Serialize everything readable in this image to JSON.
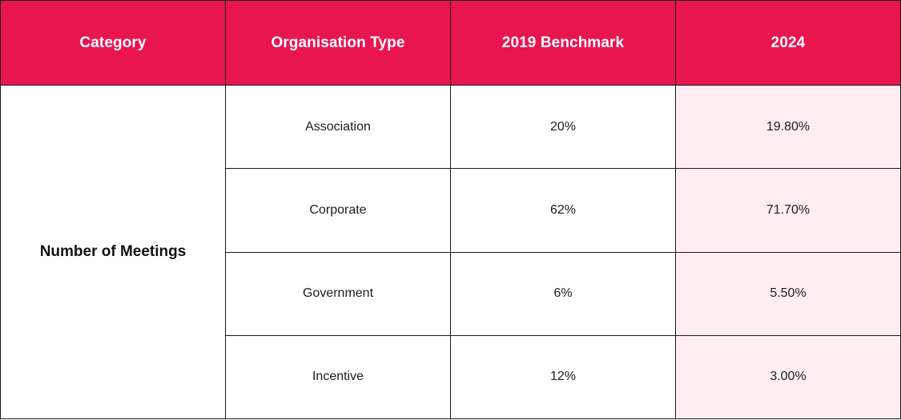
{
  "colors": {
    "header_bg": "#e8154f",
    "header_text": "#ffffff",
    "highlight_col_bg": "#ffedf2",
    "border": "#1a1a1a"
  },
  "table": {
    "headers": [
      "Category",
      "Organisation Type",
      "2019 Benchmark",
      "2024"
    ],
    "category": "Number of Meetings",
    "rows": [
      {
        "type": "Association",
        "benchmark_2019": "20%",
        "value_2024": "19.80%"
      },
      {
        "type": "Corporate",
        "benchmark_2019": "62%",
        "value_2024": "71.70%"
      },
      {
        "type": "Government",
        "benchmark_2019": "6%",
        "value_2024": "5.50%"
      },
      {
        "type": "Incentive",
        "benchmark_2019": "12%",
        "value_2024": "3.00%"
      }
    ]
  }
}
